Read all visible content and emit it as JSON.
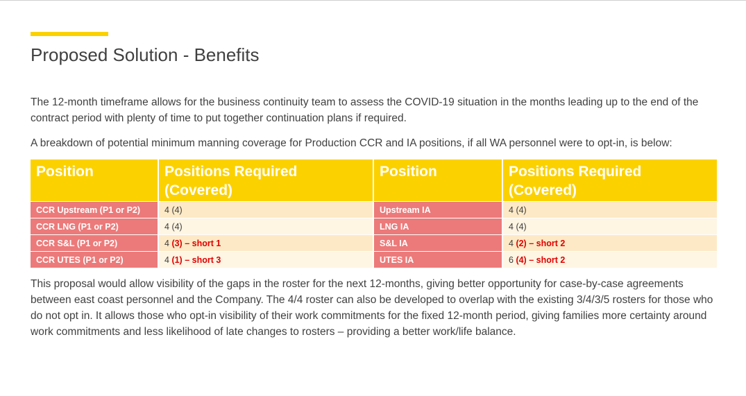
{
  "slide": {
    "title": "Proposed Solution - Benefits",
    "paragraph_1": "The 12-month timeframe allows for the business continuity team to assess the COVID-19 situation in the months leading up to the end of the contract period with plenty of time to put together continuation plans if required.",
    "paragraph_2": "A breakdown of potential minimum manning coverage for Production CCR and IA positions, if all WA personnel were to opt-in, is below:",
    "paragraph_3": "This proposal would allow visibility of the gaps in the roster for the next 12-months, giving better opportunity for case-by-case agreements between east coast personnel and the Company. The 4/4 roster can also be developed to overlap with the existing 3/4/3/5 rosters for those who do not opt in. It allows those who opt-in visibility of their work commitments for the fixed 12-month period, giving families more certainty around work commitments and less likelihood of late changes to rosters – providing a better work/life balance."
  },
  "table": {
    "headers": [
      "Position",
      "Positions Required (Covered)",
      "Position",
      "Positions Required (Covered)"
    ],
    "rows": [
      {
        "pos_a": "CCR Upstream (P1 or P2)",
        "req_a": "4",
        "cov_a": "(4)",
        "short_a": "",
        "pos_b": "Upstream IA",
        "req_b": "4",
        "cov_b": "(4)",
        "short_b": ""
      },
      {
        "pos_a": "CCR LNG (P1 or P2)",
        "req_a": "4",
        "cov_a": "(4)",
        "short_a": "",
        "pos_b": "LNG IA",
        "req_b": "4",
        "cov_b": "(4)",
        "short_b": ""
      },
      {
        "pos_a": "CCR S&L (P1 or P2)",
        "req_a": "4",
        "cov_a": "(3) – short 1",
        "short_a": "true",
        "pos_b": "S&L IA",
        "req_b": "4",
        "cov_b": "(2) – short 2",
        "short_b": "true"
      },
      {
        "pos_a": "CCR UTES (P1 or P2)",
        "req_a": "4",
        "cov_a": "(1) – short 3",
        "short_a": "true",
        "pos_b": "UTES IA",
        "req_b": "6",
        "cov_b": "(4) – short 2",
        "short_b": "true"
      }
    ]
  },
  "colors": {
    "accent_yellow": "#fcd100",
    "position_red": "#ec7a7a",
    "shortfall_red": "#e00000"
  }
}
